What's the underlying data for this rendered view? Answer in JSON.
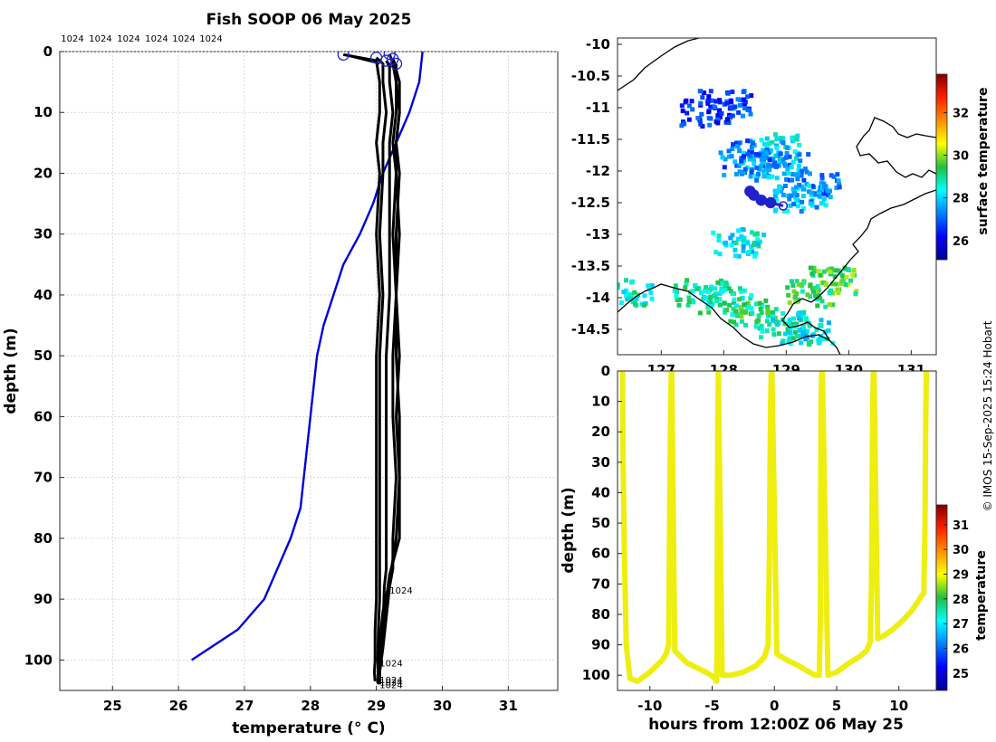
{
  "colors": {
    "profile": "#000000",
    "climatology": "#0000dd",
    "marker": "#2222cc",
    "trace": "#eeee10",
    "land": "#000000"
  },
  "footer": {
    "credit": "© IMOS 15-Sep-2025 15:24 Hobart"
  },
  "chart_data": [
    {
      "id": "profile",
      "type": "line",
      "title": "Fish SOOP 06 May 2025",
      "xlabel": "temperature (° C)",
      "ylabel": "depth (m)",
      "xlim": [
        24.2,
        31.75
      ],
      "ylim": [
        105,
        0
      ],
      "xticks": [
        25,
        26,
        27,
        28,
        29,
        30,
        31
      ],
      "yticks": [
        0,
        10,
        20,
        30,
        40,
        50,
        60,
        70,
        80,
        90,
        100
      ],
      "grid": true,
      "top_labels": [
        "1024",
        "1024",
        "1024",
        "1024",
        "1024",
        "1024"
      ],
      "end_labels": [
        {
          "text": "1024",
          "temp": 29.2,
          "depth": 88.5
        },
        {
          "text": "1024",
          "temp": 29.05,
          "depth": 100.5
        },
        {
          "text": "1024",
          "temp": 29.05,
          "depth": 103.2
        },
        {
          "text": "1024",
          "temp": 29.05,
          "depth": 103.6
        },
        {
          "text": "1024",
          "temp": 29.05,
          "depth": 104.0
        }
      ],
      "surface_markers": [
        {
          "temp": 28.5,
          "depth": 0.5
        },
        {
          "temp": 29.0,
          "depth": 1.0
        },
        {
          "temp": 29.15,
          "depth": 1.5
        },
        {
          "temp": 29.2,
          "depth": 0.4
        },
        {
          "temp": 29.25,
          "depth": 1.2
        },
        {
          "temp": 29.3,
          "depth": 2.0
        }
      ],
      "climatology": {
        "name": "climatology",
        "temps": [
          29.7,
          29.65,
          29.5,
          29.3,
          29.1,
          28.95,
          28.75,
          28.5,
          28.35,
          28.2,
          28.1,
          28.05,
          28.0,
          27.95,
          27.9,
          27.85,
          27.7,
          27.5,
          27.3,
          26.9,
          26.2
        ],
        "depths": [
          0,
          5,
          10,
          15,
          20,
          25,
          30,
          35,
          40,
          45,
          50,
          55,
          60,
          65,
          70,
          75,
          80,
          85,
          90,
          95,
          100
        ]
      },
      "profiles": [
        {
          "name": "cast-1",
          "temps": [
            28.5,
            29.0,
            29.05,
            29.05,
            29.0,
            29.05,
            29.0,
            29.05,
            29.0,
            29.0,
            29.0,
            29.0,
            29.0,
            28.98,
            28.98,
            28.97,
            28.98
          ],
          "depths": [
            0.5,
            1.5,
            5,
            10,
            15,
            20,
            30,
            40,
            50,
            60,
            70,
            80,
            90,
            95,
            100,
            102,
            103.5
          ]
        },
        {
          "name": "cast-2",
          "temps": [
            29.0,
            29.1,
            29.1,
            29.15,
            29.1,
            29.1,
            29.05,
            29.1,
            29.05,
            29.05,
            29.05,
            29.05,
            29.05,
            29.03,
            29.02,
            29.03,
            29.03
          ],
          "depths": [
            1.0,
            2,
            5,
            10,
            15,
            20,
            30,
            40,
            50,
            60,
            70,
            80,
            90,
            95,
            100,
            102,
            104
          ]
        },
        {
          "name": "cast-3",
          "temps": [
            29.15,
            29.2,
            29.2,
            29.25,
            29.2,
            29.2,
            29.2,
            29.2,
            29.15,
            29.15,
            29.15,
            29.15,
            29.15,
            29.12,
            29.1,
            29.05,
            29.05
          ],
          "depths": [
            1.5,
            2.5,
            5,
            10,
            15,
            20,
            30,
            40,
            50,
            60,
            70,
            80,
            85,
            88,
            95,
            100,
            103
          ]
        },
        {
          "name": "cast-4",
          "temps": [
            29.2,
            29.25,
            29.3,
            29.3,
            29.25,
            29.3,
            29.25,
            29.3,
            29.25,
            29.25,
            29.3,
            29.25,
            29.25,
            29.2,
            29.15,
            29.1,
            29.05
          ],
          "depths": [
            0.4,
            2,
            5,
            10,
            15,
            20,
            30,
            40,
            50,
            60,
            70,
            80,
            85,
            88,
            93,
            98,
            102
          ]
        },
        {
          "name": "cast-5",
          "temps": [
            29.25,
            29.3,
            29.3,
            29.35,
            29.3,
            29.35,
            29.3,
            29.3,
            29.3,
            29.35,
            29.35,
            29.35,
            29.2,
            29.15,
            29.1,
            29.05,
            29.05
          ],
          "depths": [
            1.2,
            2.5,
            5,
            10,
            15,
            20,
            30,
            40,
            50,
            60,
            70,
            80,
            86,
            90,
            95,
            100,
            104
          ]
        },
        {
          "name": "cast-6",
          "temps": [
            29.3,
            29.3,
            29.35,
            29.35,
            29.3,
            29.3,
            29.35,
            29.3,
            29.35,
            29.3,
            29.35,
            29.3,
            29.2,
            29.1,
            29.05,
            29.03,
            29.02
          ],
          "depths": [
            2.0,
            3,
            5,
            10,
            15,
            20,
            30,
            40,
            50,
            60,
            70,
            80,
            87,
            92,
            97,
            101,
            103.8
          ]
        }
      ]
    },
    {
      "id": "map",
      "type": "heatmap",
      "xlim": [
        126.3,
        131.4
      ],
      "ylim": [
        -14.9,
        -9.9
      ],
      "xticks": [
        127,
        128,
        129,
        130,
        131
      ],
      "yticks": [
        -10,
        -10.5,
        -11,
        -11.5,
        -12,
        -12.5,
        -13,
        -13.5,
        -14,
        -14.5
      ],
      "colorbar": {
        "label": "surface temperature",
        "ticks": [
          26,
          28,
          30,
          32
        ],
        "range": [
          25.1,
          33.8
        ]
      },
      "track": [
        {
          "lon": 128.42,
          "lat": -12.32
        },
        {
          "lon": 128.48,
          "lat": -12.38
        },
        {
          "lon": 128.6,
          "lat": -12.46
        },
        {
          "lon": 128.75,
          "lat": -12.5
        },
        {
          "lon": 128.95,
          "lat": -12.55
        }
      ],
      "sst_patches": [
        {
          "lon": 128.8,
          "lat": -11.6,
          "sst": 28.2
        },
        {
          "lon": 128.5,
          "lat": -11.7,
          "sst": 27.4
        },
        {
          "lon": 128.3,
          "lat": -11.85,
          "sst": 27.2
        },
        {
          "lon": 128.9,
          "lat": -11.9,
          "sst": 27.6
        },
        {
          "lon": 129.4,
          "lat": -12.2,
          "sst": 27.4
        },
        {
          "lon": 129.2,
          "lat": -12.4,
          "sst": 27.8
        },
        {
          "lon": 128.0,
          "lat": -10.9,
          "sst": 26.8
        },
        {
          "lon": 127.7,
          "lat": -11.05,
          "sst": 26.5
        },
        {
          "lon": 128.2,
          "lat": -13.1,
          "sst": 28.3
        },
        {
          "lon": 127.6,
          "lat": -13.9,
          "sst": 28.8
        },
        {
          "lon": 128.0,
          "lat": -14.0,
          "sst": 28.9
        },
        {
          "lon": 128.4,
          "lat": -14.2,
          "sst": 29.1
        },
        {
          "lon": 128.9,
          "lat": -14.4,
          "sst": 28.6
        },
        {
          "lon": 129.3,
          "lat": -14.5,
          "sst": 28.4
        },
        {
          "lon": 129.7,
          "lat": -13.7,
          "sst": 29.6
        },
        {
          "lon": 129.4,
          "lat": -13.9,
          "sst": 29.3
        },
        {
          "lon": 126.4,
          "lat": -13.9,
          "sst": 28.5
        }
      ]
    },
    {
      "id": "section",
      "type": "scatter",
      "xlabel": "hours from 12:00Z 06 May 25",
      "ylabel": "depth (m)",
      "xlim": [
        -12.6,
        13
      ],
      "ylim": [
        105,
        0
      ],
      "xticks": [
        -10,
        -5,
        0,
        5,
        10
      ],
      "yticks": [
        0,
        10,
        20,
        30,
        40,
        50,
        60,
        70,
        80,
        90,
        100
      ],
      "colorbar": {
        "label": "temperature",
        "ticks": [
          25,
          26,
          27,
          28,
          29,
          30,
          31
        ],
        "range": [
          24.3,
          31.8
        ]
      },
      "casts": [
        {
          "x": [
            -12.2,
            -12.15,
            -12.05,
            -11.9,
            -11.6,
            -11.0,
            -10.0,
            -9.5,
            -9.0,
            -8.7,
            -8.5,
            -8.45,
            -8.4,
            -8.35,
            -8.3,
            -8.28
          ],
          "depth": [
            0,
            30,
            60,
            90,
            101,
            102,
            99,
            97,
            95,
            93,
            90,
            70,
            40,
            20,
            5,
            0
          ]
        },
        {
          "x": [
            -8.25,
            -8.0,
            -7.5,
            -7.0,
            -6.5,
            -6.0,
            -5.5,
            -5.1,
            -4.8,
            -4.65,
            -4.6,
            -4.58,
            -4.55,
            -4.5
          ],
          "depth": [
            0,
            92,
            94,
            96,
            97,
            98,
            99,
            100,
            101,
            102,
            90,
            50,
            20,
            0
          ]
        },
        {
          "x": [
            -4.5,
            -4.2,
            -3.5,
            -2.5,
            -1.5,
            -0.8,
            -0.5,
            -0.4,
            -0.35,
            -0.3,
            -0.25
          ],
          "depth": [
            0,
            100,
            100,
            99,
            97,
            94,
            90,
            60,
            30,
            10,
            0
          ]
        },
        {
          "x": [
            -0.2,
            0.2,
            1.0,
            2.0,
            2.8,
            3.3,
            3.6,
            3.7,
            3.72,
            3.75,
            3.8
          ],
          "depth": [
            0,
            93,
            95,
            97,
            99,
            100,
            100,
            80,
            40,
            10,
            0
          ]
        },
        {
          "x": [
            3.85,
            4.3,
            5.0,
            6.0,
            6.8,
            7.4,
            7.7,
            7.8,
            7.85,
            7.9,
            7.95
          ],
          "depth": [
            0,
            100,
            99,
            96,
            94,
            92,
            89,
            70,
            40,
            10,
            0
          ]
        },
        {
          "x": [
            8.0,
            8.3,
            8.8,
            9.5,
            10.3,
            11.0,
            11.5,
            11.8,
            12.0,
            12.1,
            12.15,
            12.2
          ],
          "depth": [
            0,
            88,
            87,
            85,
            82,
            79,
            76,
            74,
            73,
            50,
            20,
            0
          ]
        }
      ]
    }
  ]
}
